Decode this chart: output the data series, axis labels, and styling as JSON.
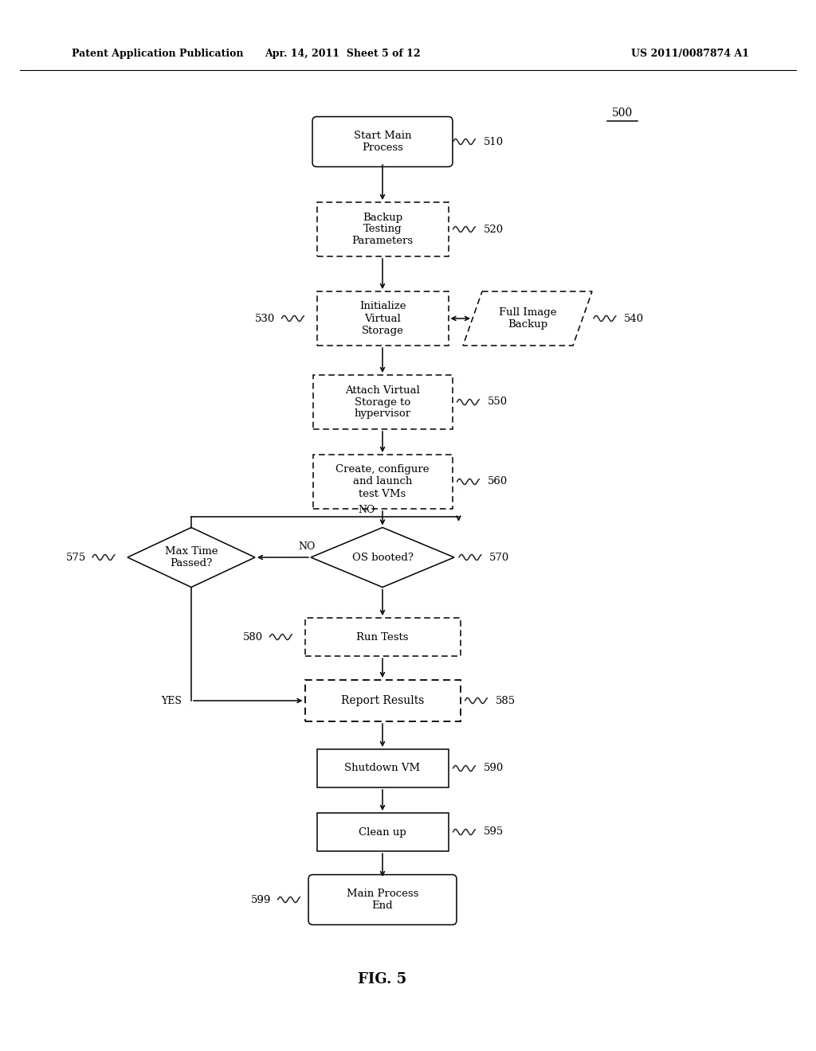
{
  "title_left": "Patent Application Publication",
  "title_center": "Apr. 14, 2011  Sheet 5 of 12",
  "title_right": "US 2011/0087874 A1",
  "fig_label": "FIG. 5",
  "diagram_label": "500",
  "background_color": "#ffffff"
}
